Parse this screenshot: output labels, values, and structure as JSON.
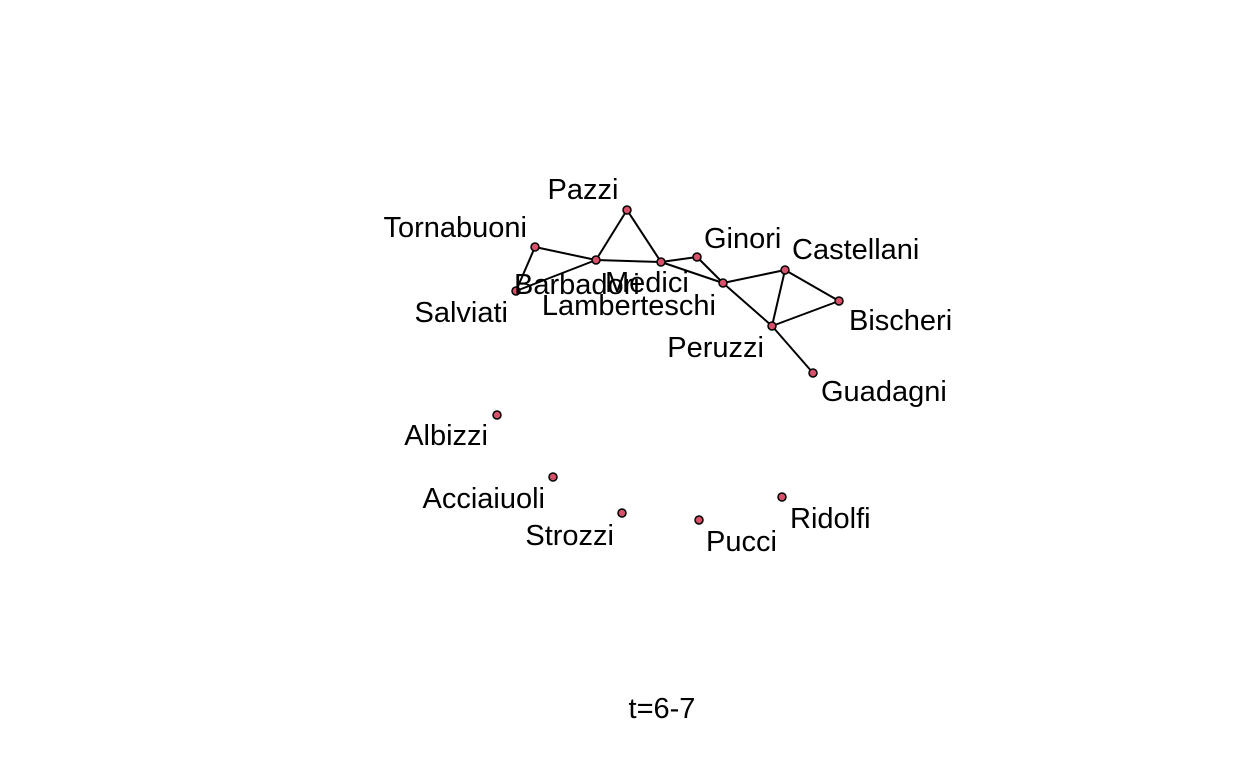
{
  "colors": {
    "node_fill": "#d9506a",
    "stroke": "#000000",
    "background": "#ffffff"
  },
  "caption": "t=6-7",
  "nodes": [
    {
      "id": "Pazzi",
      "label": "Pazzi"
    },
    {
      "id": "Tornabuoni",
      "label": "Tornabuoni"
    },
    {
      "id": "Barbadori",
      "label": "Barbadori"
    },
    {
      "id": "Medici",
      "label": "Medici"
    },
    {
      "id": "Ginori",
      "label": "Ginori"
    },
    {
      "id": "Castellani",
      "label": "Castellani"
    },
    {
      "id": "Salviati",
      "label": "Salviati"
    },
    {
      "id": "Lamberteschi",
      "label": "Lamberteschi"
    },
    {
      "id": "Bischeri",
      "label": "Bischeri"
    },
    {
      "id": "Peruzzi",
      "label": "Peruzzi"
    },
    {
      "id": "Guadagni",
      "label": "Guadagni"
    },
    {
      "id": "Albizzi",
      "label": "Albizzi"
    },
    {
      "id": "Acciaiuoli",
      "label": "Acciaiuoli"
    },
    {
      "id": "Strozzi",
      "label": "Strozzi"
    },
    {
      "id": "Pucci",
      "label": "Pucci"
    },
    {
      "id": "Ridolfi",
      "label": "Ridolfi"
    }
  ],
  "edges": [
    [
      "Tornabuoni",
      "Salviati"
    ],
    [
      "Tornabuoni",
      "Barbadori"
    ],
    [
      "Salviati",
      "Barbadori"
    ],
    [
      "Barbadori",
      "Pazzi"
    ],
    [
      "Barbadori",
      "Medici"
    ],
    [
      "Pazzi",
      "Medici"
    ],
    [
      "Medici",
      "Ginori"
    ],
    [
      "Medici",
      "Lamberteschi"
    ],
    [
      "Ginori",
      "Lamberteschi"
    ],
    [
      "Lamberteschi",
      "Castellani"
    ],
    [
      "Lamberteschi",
      "Peruzzi"
    ],
    [
      "Castellani",
      "Bischeri"
    ],
    [
      "Castellani",
      "Peruzzi"
    ],
    [
      "Bischeri",
      "Peruzzi"
    ],
    [
      "Peruzzi",
      "Guadagni"
    ]
  ]
}
